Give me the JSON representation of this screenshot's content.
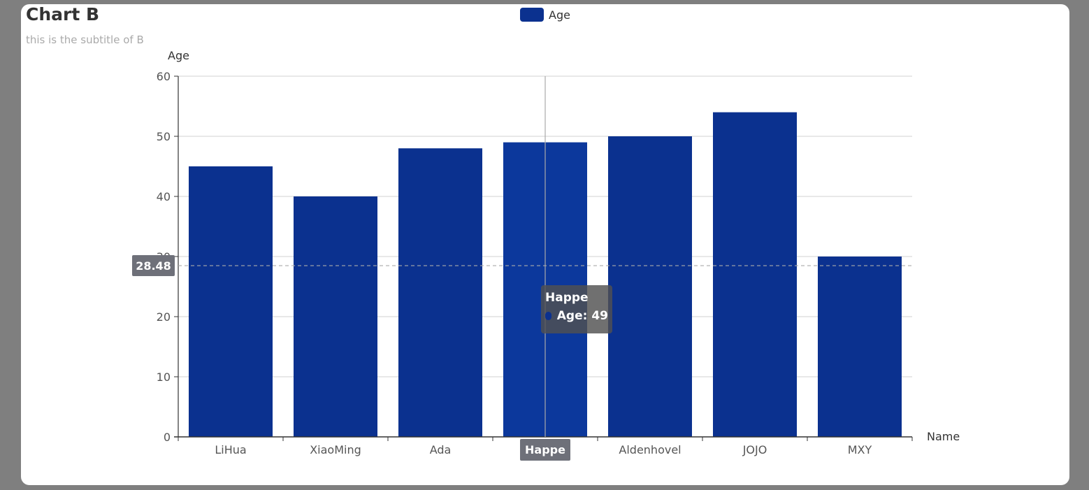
{
  "chart_data": {
    "type": "bar",
    "title": "Chart B",
    "subtitle": "this is the subtitle of B",
    "categories": [
      "LiHua",
      "XiaoMing",
      "Ada",
      "Happe",
      "Aldenhovel",
      "JOJO",
      "MXY"
    ],
    "series": [
      {
        "name": "Age",
        "values": [
          45,
          40,
          48,
          49,
          50,
          54,
          30
        ],
        "color": "#0b318f"
      }
    ],
    "xlabel": "Name",
    "ylabel": "Age",
    "ylim": [
      0,
      60
    ],
    "yticks": [
      0,
      10,
      20,
      30,
      40,
      50,
      60
    ],
    "grid": true,
    "legend_placement": "top-center",
    "highlight_color": "#0c389c",
    "axis_pointer": {
      "y_value": "28.48",
      "x_category": "Happe"
    },
    "tooltip": {
      "title": "Happe",
      "series": "Age",
      "value": "49"
    }
  }
}
